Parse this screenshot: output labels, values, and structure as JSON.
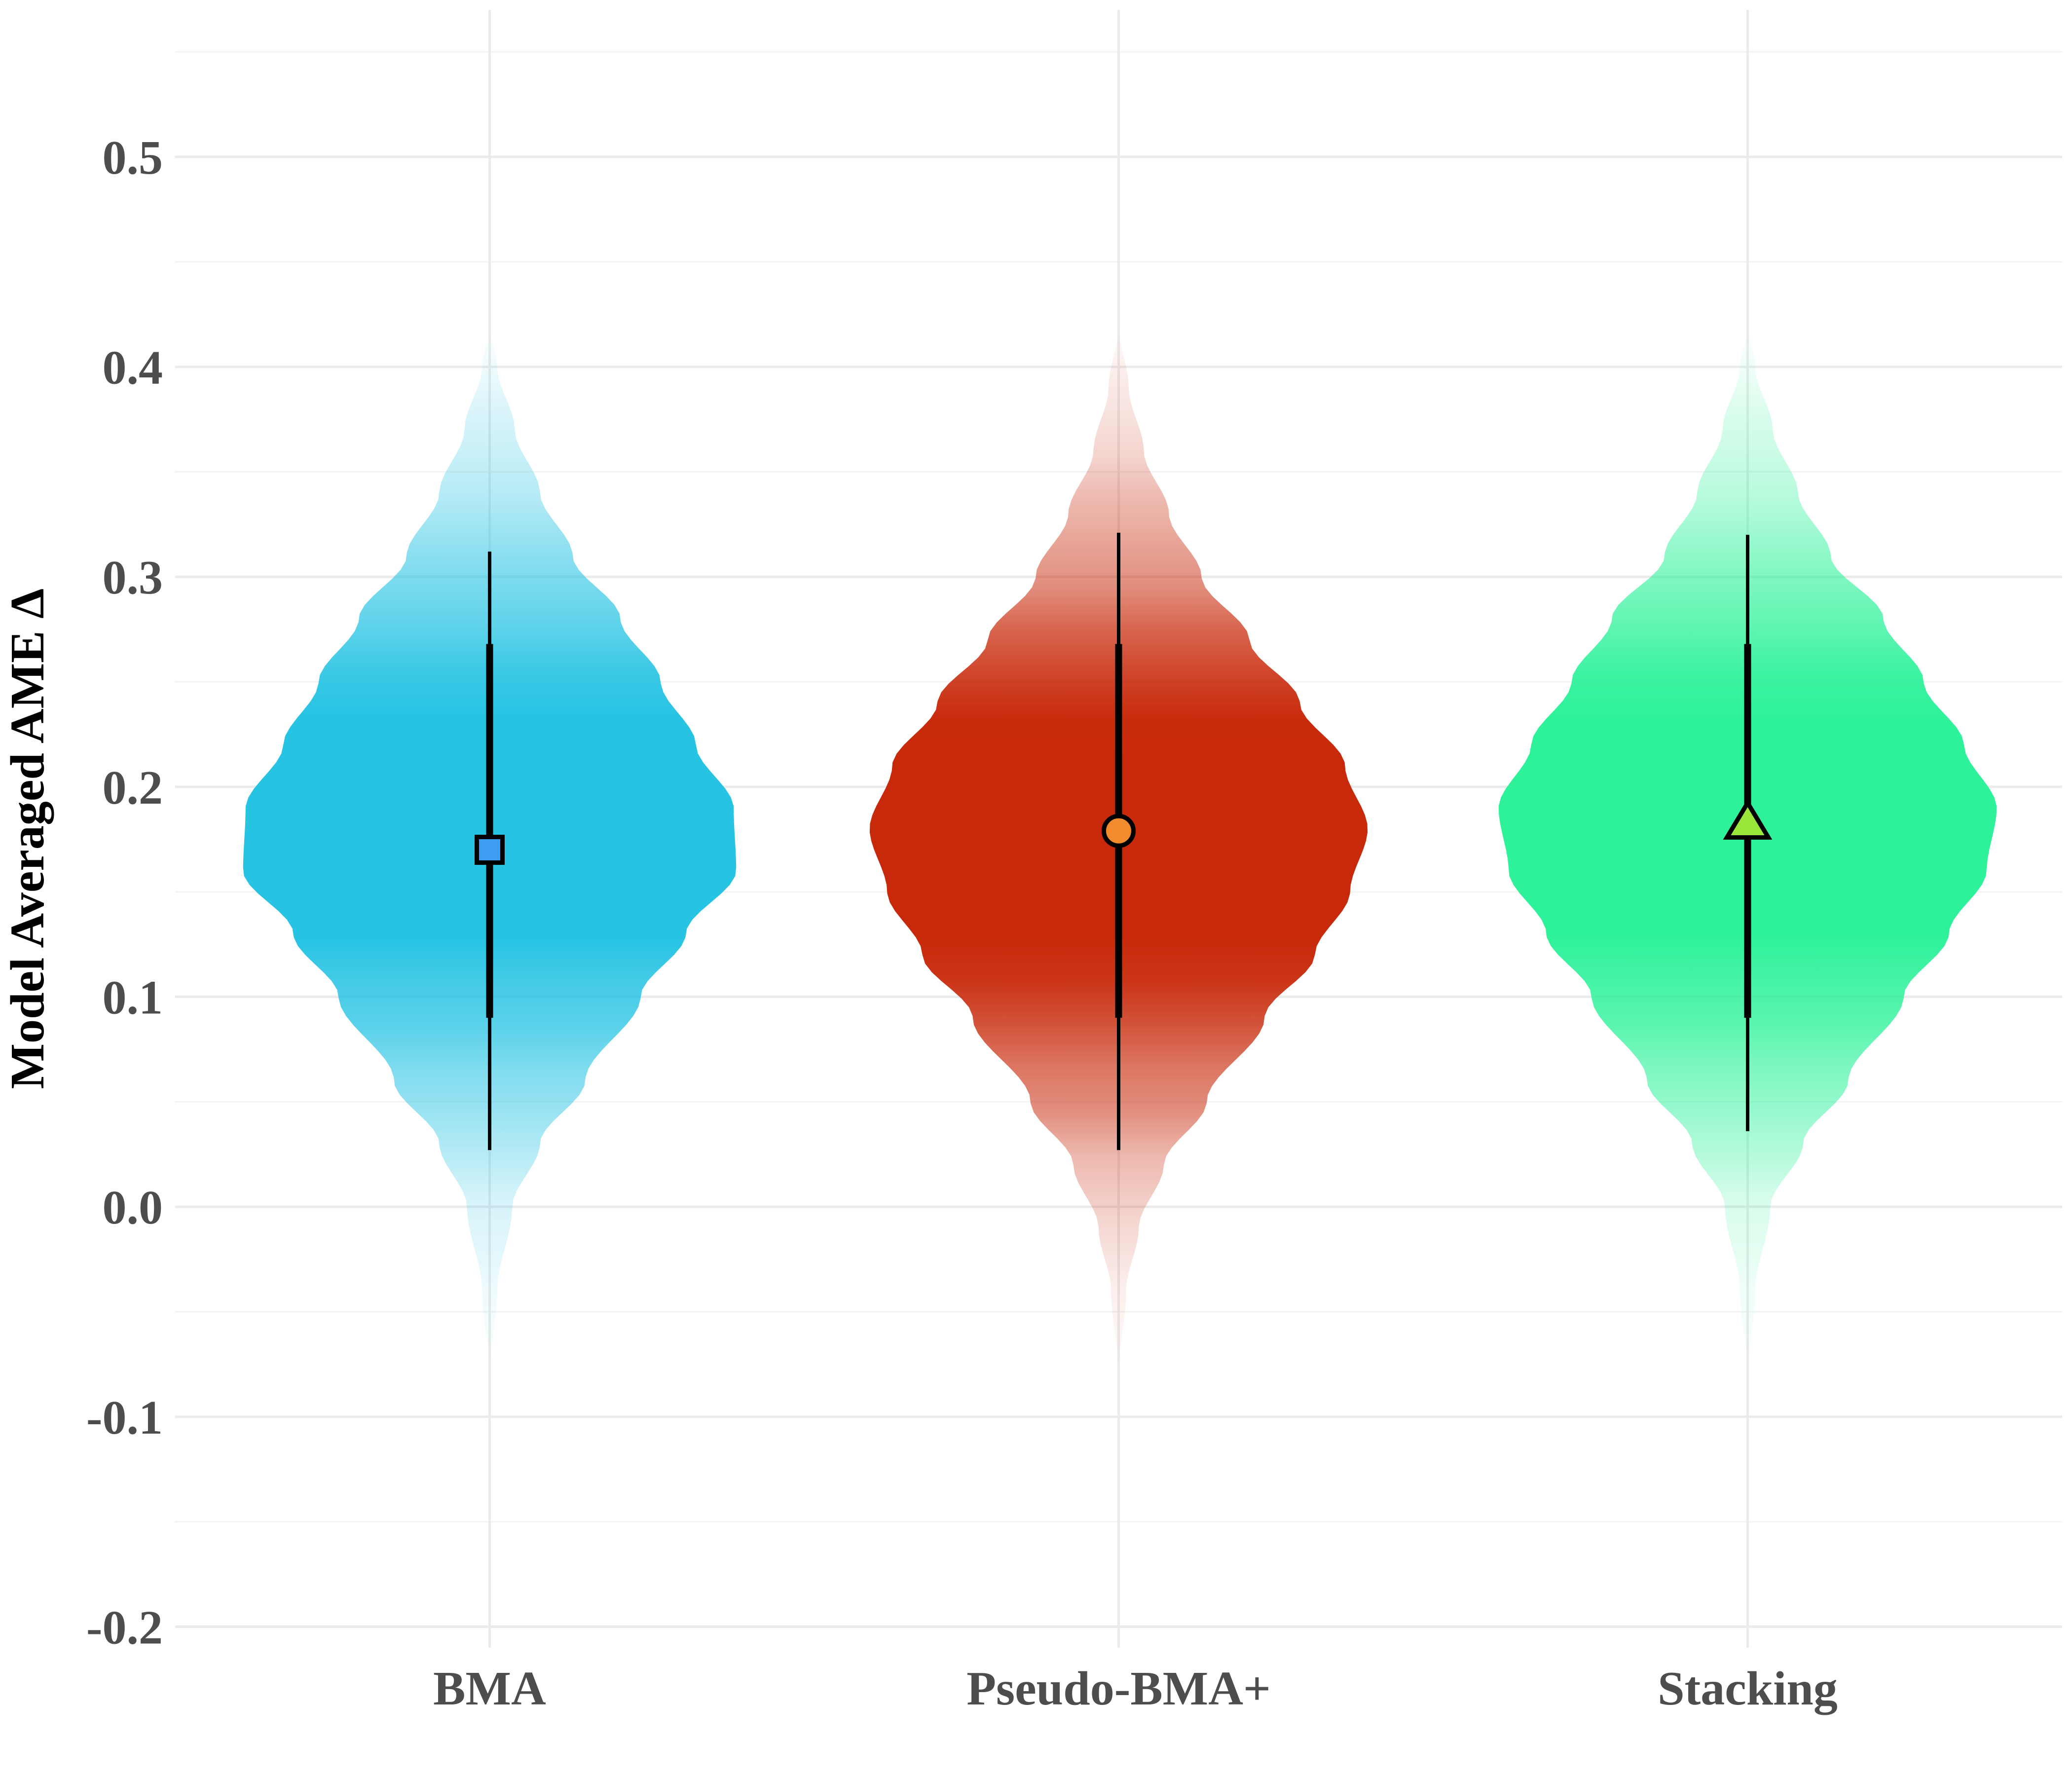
{
  "chart_data": {
    "type": "violin",
    "title": "",
    "xlabel": "",
    "ylabel": "Model Averaged AME Δ",
    "ylim": [
      -0.21,
      0.57
    ],
    "yticks": [
      "-0.2",
      "-0.1",
      "0.0",
      "0.1",
      "0.2",
      "0.3",
      "0.4",
      "0.5"
    ],
    "grid": true,
    "legend": "none",
    "series": [
      {
        "name": "BMA",
        "color": "#26c3e3",
        "point_shape": "square",
        "point_color": "#3d9df2",
        "median": 0.17,
        "interval_66": [
          0.09,
          0.268
        ],
        "interval_95": [
          0.027,
          0.312
        ],
        "density_range": [
          -0.08,
          0.42
        ],
        "density": [
          [
            -0.08,
            0.0
          ],
          [
            -0.04,
            0.03
          ],
          [
            0.0,
            0.09
          ],
          [
            0.03,
            0.2
          ],
          [
            0.06,
            0.38
          ],
          [
            0.1,
            0.6
          ],
          [
            0.13,
            0.78
          ],
          [
            0.16,
            0.98
          ],
          [
            0.19,
            0.97
          ],
          [
            0.22,
            0.82
          ],
          [
            0.25,
            0.68
          ],
          [
            0.28,
            0.52
          ],
          [
            0.31,
            0.33
          ],
          [
            0.34,
            0.2
          ],
          [
            0.37,
            0.1
          ],
          [
            0.4,
            0.03
          ],
          [
            0.42,
            0.0
          ]
        ]
      },
      {
        "name": "Pseudo-BMA+",
        "color": "#c8290a",
        "point_shape": "circle",
        "point_color": "#f28a2e",
        "median": 0.179,
        "interval_66": [
          0.09,
          0.268
        ],
        "interval_95": [
          0.027,
          0.321
        ],
        "density_range": [
          -0.08,
          0.42
        ],
        "density": [
          [
            -0.08,
            0.0
          ],
          [
            -0.04,
            0.03
          ],
          [
            -0.01,
            0.08
          ],
          [
            0.02,
            0.18
          ],
          [
            0.05,
            0.35
          ],
          [
            0.09,
            0.58
          ],
          [
            0.12,
            0.78
          ],
          [
            0.15,
            0.92
          ],
          [
            0.18,
            0.99
          ],
          [
            0.21,
            0.9
          ],
          [
            0.24,
            0.72
          ],
          [
            0.27,
            0.52
          ],
          [
            0.3,
            0.33
          ],
          [
            0.33,
            0.2
          ],
          [
            0.36,
            0.1
          ],
          [
            0.39,
            0.04
          ],
          [
            0.42,
            0.0
          ]
        ]
      },
      {
        "name": "Stacking",
        "color": "#2ef29a",
        "point_shape": "triangle",
        "point_color": "#9ae63a",
        "median": 0.182,
        "interval_66": [
          0.09,
          0.268
        ],
        "interval_95": [
          0.036,
          0.32
        ],
        "density_range": [
          -0.08,
          0.42
        ],
        "density": [
          [
            -0.08,
            0.0
          ],
          [
            -0.04,
            0.03
          ],
          [
            0.0,
            0.09
          ],
          [
            0.03,
            0.22
          ],
          [
            0.06,
            0.4
          ],
          [
            0.1,
            0.62
          ],
          [
            0.13,
            0.8
          ],
          [
            0.16,
            0.95
          ],
          [
            0.19,
            0.99
          ],
          [
            0.22,
            0.86
          ],
          [
            0.25,
            0.7
          ],
          [
            0.28,
            0.54
          ],
          [
            0.31,
            0.33
          ],
          [
            0.34,
            0.2
          ],
          [
            0.37,
            0.1
          ],
          [
            0.4,
            0.03
          ],
          [
            0.42,
            0.0
          ]
        ]
      }
    ]
  }
}
